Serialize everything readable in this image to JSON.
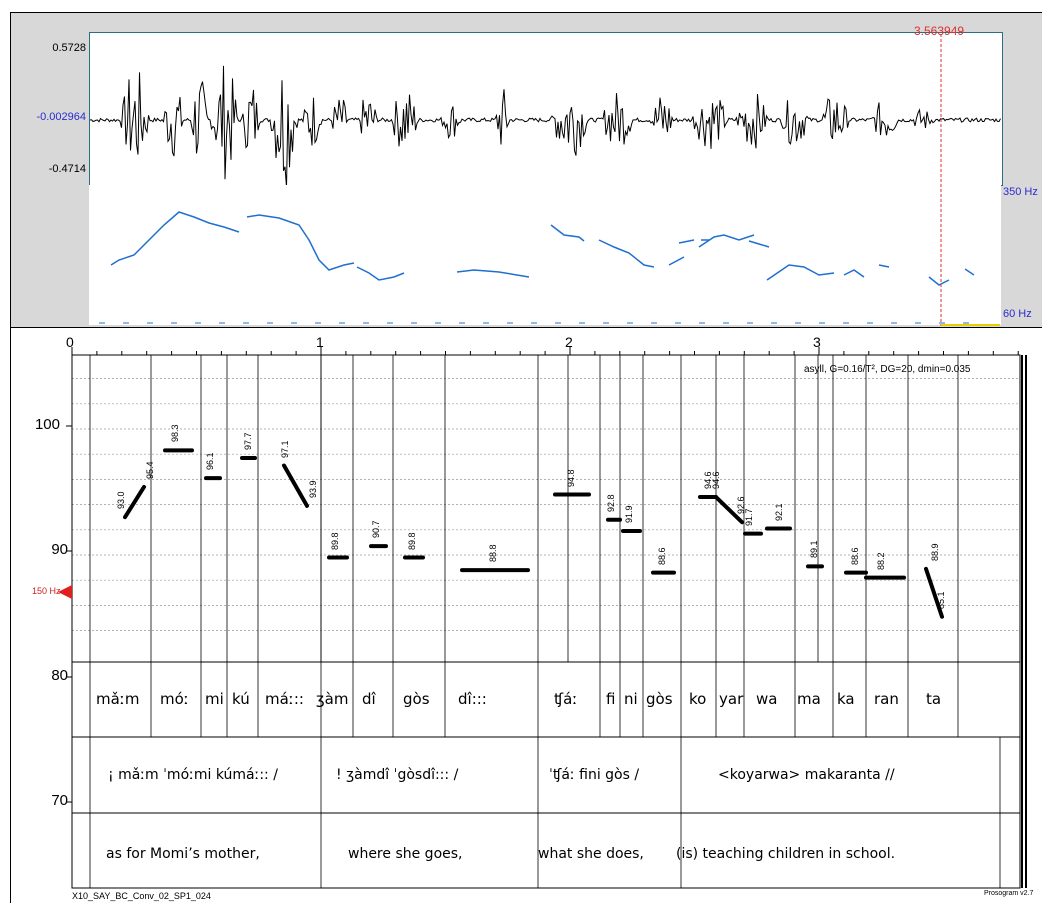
{
  "waveform": {
    "amp_max": "0.5728",
    "amp_mid": "-0.002964",
    "amp_min": "-0.4714",
    "cursor_time": "3.563949"
  },
  "pitch": {
    "hz_top": "350 Hz",
    "hz_bottom": "60 Hz"
  },
  "time_axis": [
    "0",
    "1",
    "2",
    "3"
  ],
  "y_axis": [
    "100",
    "90",
    "80",
    "70"
  ],
  "reference": "150 Hz",
  "info": "asyll, G=0.16/T², DG=20, dmin=0.035",
  "nuclei_values": [
    "93.0",
    "95.4",
    "98.3",
    "96.1",
    "97.7",
    "97.1",
    "93.9",
    "89.8",
    "90.7",
    "89.8",
    "88.8",
    "94.8",
    "92.8",
    "91.9",
    "88.6",
    "94.6",
    "94.6",
    "92.6",
    "91.7",
    "92.1",
    "89.1",
    "88.6",
    "88.2",
    "88.9",
    "85.1"
  ],
  "syllables": [
    "mǎːm",
    "móː",
    "mi",
    "kú",
    "máː::",
    "ʒàm",
    "dî",
    "gòs",
    "dî:::",
    "ʧáː",
    "fi",
    "ni",
    "gòs",
    "ko",
    "yar",
    "wa",
    "ma",
    "ka",
    "ran",
    "ta"
  ],
  "phrases": [
    "¡ mǎːm ˈmóːmi kúmáː:: /",
    "! ʒàmdî ˈgòsdî::: /",
    "ˈʧáː fini gòs /",
    "<koyarwa> makaranta //"
  ],
  "gloss": [
    "as for Momi’s mother,",
    "where she goes,",
    "what she does,",
    "(is) teaching children in school."
  ],
  "file_id": "X10_SAY_BC_Conv_02_SP1_024",
  "version": "Prosogram v2.7",
  "colors": {
    "pitch": "#1f6fd0",
    "cursor": "#e03030",
    "axis_blue": "#2b2bd0",
    "frame": "#2a6f7f"
  }
}
